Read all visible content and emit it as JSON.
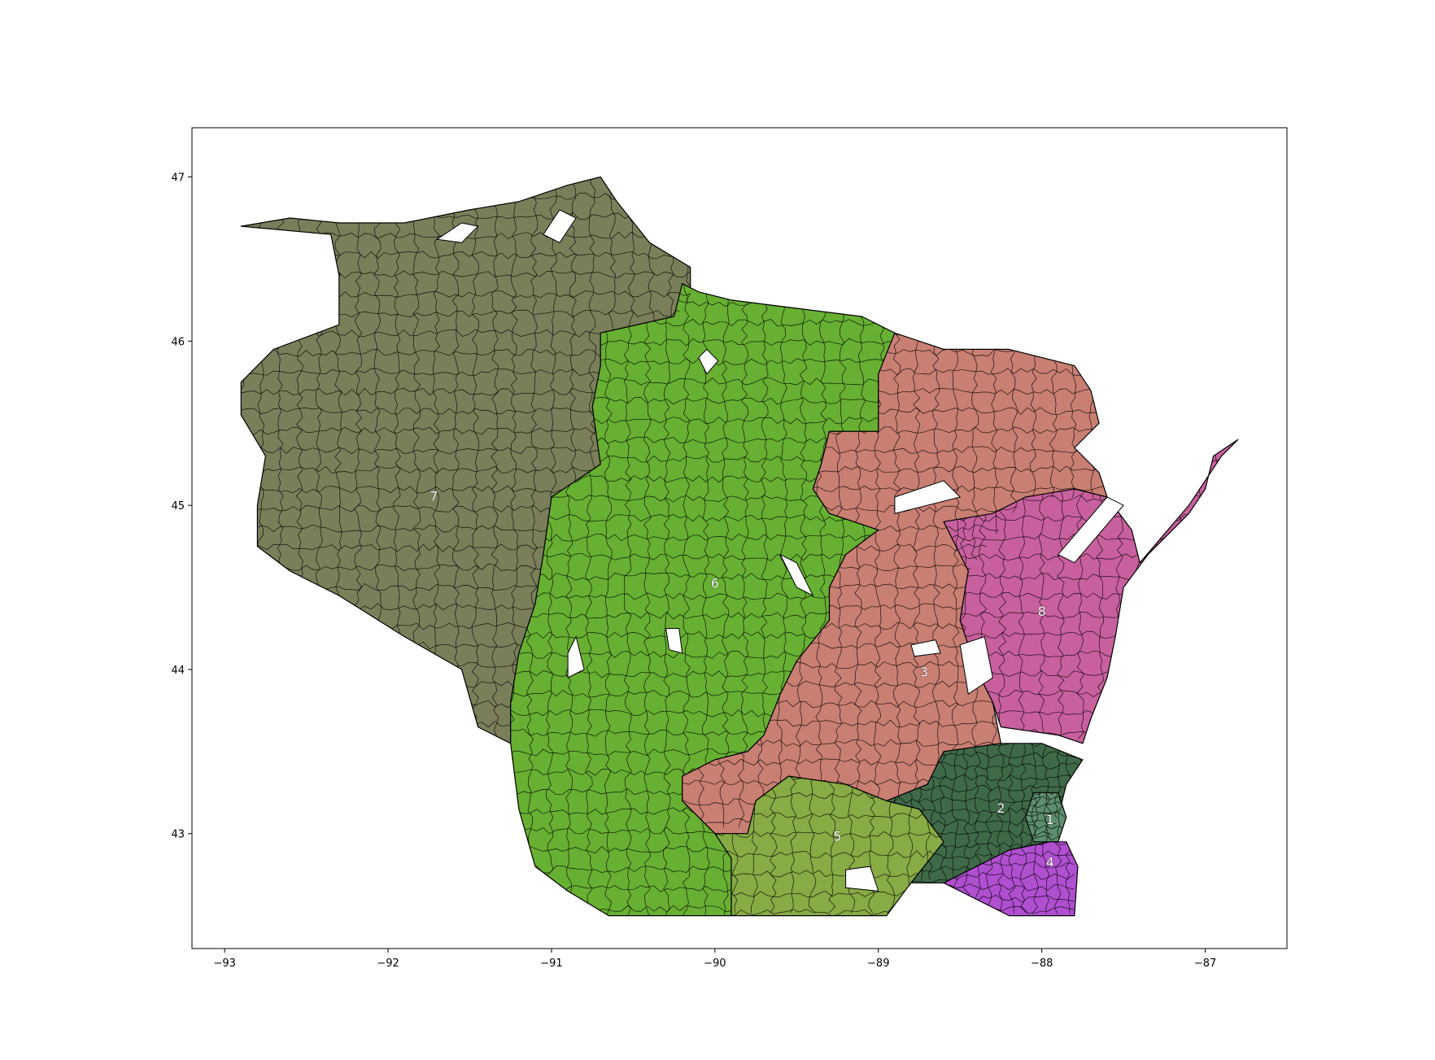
{
  "map": {
    "xlim": [
      -93.2,
      -86.5
    ],
    "ylim": [
      42.3,
      47.3
    ],
    "x_ticks": [
      {
        "value": -93,
        "label": "−93"
      },
      {
        "value": -92,
        "label": "−92"
      },
      {
        "value": -91,
        "label": "−91"
      },
      {
        "value": -90,
        "label": "−90"
      },
      {
        "value": -89,
        "label": "−89"
      },
      {
        "value": -88,
        "label": "−88"
      },
      {
        "value": -87,
        "label": "−87"
      }
    ],
    "y_ticks": [
      {
        "value": 43,
        "label": "43"
      },
      {
        "value": 44,
        "label": "44"
      },
      {
        "value": 45,
        "label": "45"
      },
      {
        "value": 46,
        "label": "46"
      },
      {
        "value": 47,
        "label": "47"
      }
    ],
    "districts": [
      {
        "id": "7",
        "label": "7",
        "color": "#7a7f5a",
        "label_at": [
          -91.72,
          45.05
        ],
        "outline": [
          [
            -92.9,
            46.7
          ],
          [
            -92.6,
            46.75
          ],
          [
            -92.3,
            46.72
          ],
          [
            -91.9,
            46.72
          ],
          [
            -91.5,
            46.8
          ],
          [
            -91.2,
            46.85
          ],
          [
            -90.9,
            46.95
          ],
          [
            -90.7,
            47.0
          ],
          [
            -90.6,
            46.85
          ],
          [
            -90.4,
            46.6
          ],
          [
            -90.15,
            46.45
          ],
          [
            -90.15,
            46.25
          ],
          [
            -90.25,
            46.15
          ],
          [
            -90.7,
            46.05
          ],
          [
            -90.7,
            45.85
          ],
          [
            -90.75,
            45.6
          ],
          [
            -90.7,
            45.25
          ],
          [
            -91.0,
            45.05
          ],
          [
            -91.05,
            44.7
          ],
          [
            -91.1,
            44.4
          ],
          [
            -91.2,
            44.1
          ],
          [
            -91.25,
            43.8
          ],
          [
            -91.25,
            43.55
          ],
          [
            -91.45,
            43.65
          ],
          [
            -91.55,
            44.0
          ],
          [
            -91.9,
            44.2
          ],
          [
            -92.3,
            44.45
          ],
          [
            -92.6,
            44.6
          ],
          [
            -92.8,
            44.75
          ],
          [
            -92.8,
            45.0
          ],
          [
            -92.75,
            45.3
          ],
          [
            -92.9,
            45.55
          ],
          [
            -92.9,
            45.75
          ],
          [
            -92.7,
            45.95
          ],
          [
            -92.3,
            46.1
          ],
          [
            -92.3,
            46.4
          ],
          [
            -92.35,
            46.65
          ]
        ]
      },
      {
        "id": "6",
        "label": "6",
        "color": "#67b032",
        "label_at": [
          -90.0,
          44.52
        ],
        "outline": [
          [
            -90.2,
            46.35
          ],
          [
            -90.1,
            46.3
          ],
          [
            -89.9,
            46.25
          ],
          [
            -89.5,
            46.2
          ],
          [
            -89.1,
            46.15
          ],
          [
            -88.9,
            46.05
          ],
          [
            -89.0,
            45.8
          ],
          [
            -89.0,
            45.6
          ],
          [
            -89.0,
            45.45
          ],
          [
            -89.3,
            45.45
          ],
          [
            -89.35,
            45.25
          ],
          [
            -89.4,
            45.1
          ],
          [
            -89.3,
            44.95
          ],
          [
            -89.0,
            44.85
          ],
          [
            -89.2,
            44.7
          ],
          [
            -89.3,
            44.5
          ],
          [
            -89.3,
            44.3
          ],
          [
            -89.5,
            44.05
          ],
          [
            -89.6,
            43.85
          ],
          [
            -89.7,
            43.6
          ],
          [
            -89.8,
            43.5
          ],
          [
            -90.0,
            43.45
          ],
          [
            -90.2,
            43.35
          ],
          [
            -90.2,
            43.2
          ],
          [
            -90.0,
            43.0
          ],
          [
            -89.9,
            42.85
          ],
          [
            -89.9,
            42.5
          ],
          [
            -90.65,
            42.5
          ],
          [
            -90.9,
            42.65
          ],
          [
            -91.1,
            42.8
          ],
          [
            -91.2,
            43.15
          ],
          [
            -91.25,
            43.55
          ],
          [
            -91.25,
            43.8
          ],
          [
            -91.2,
            44.1
          ],
          [
            -91.1,
            44.4
          ],
          [
            -91.05,
            44.7
          ],
          [
            -91.0,
            45.05
          ],
          [
            -90.7,
            45.25
          ],
          [
            -90.75,
            45.6
          ],
          [
            -90.7,
            45.85
          ],
          [
            -90.7,
            46.05
          ],
          [
            -90.25,
            46.15
          ]
        ]
      },
      {
        "id": "3",
        "label": "3",
        "color": "#c97f72",
        "label_at": [
          -88.72,
          43.98
        ],
        "outline": [
          [
            -88.9,
            46.05
          ],
          [
            -88.6,
            45.95
          ],
          [
            -88.2,
            45.95
          ],
          [
            -87.8,
            45.85
          ],
          [
            -87.7,
            45.7
          ],
          [
            -87.65,
            45.5
          ],
          [
            -87.8,
            45.35
          ],
          [
            -87.65,
            45.2
          ],
          [
            -87.6,
            45.05
          ],
          [
            -88.1,
            45.05
          ],
          [
            -88.3,
            44.8
          ],
          [
            -88.45,
            44.6
          ],
          [
            -88.5,
            44.3
          ],
          [
            -88.4,
            44.0
          ],
          [
            -88.3,
            43.8
          ],
          [
            -88.25,
            43.55
          ],
          [
            -88.6,
            43.5
          ],
          [
            -88.7,
            43.3
          ],
          [
            -88.95,
            43.2
          ],
          [
            -89.2,
            43.3
          ],
          [
            -89.55,
            43.35
          ],
          [
            -89.75,
            43.2
          ],
          [
            -89.8,
            43.0
          ],
          [
            -90.0,
            43.0
          ],
          [
            -90.2,
            43.2
          ],
          [
            -90.2,
            43.35
          ],
          [
            -90.0,
            43.45
          ],
          [
            -89.8,
            43.5
          ],
          [
            -89.7,
            43.6
          ],
          [
            -89.6,
            43.85
          ],
          [
            -89.5,
            44.05
          ],
          [
            -89.3,
            44.3
          ],
          [
            -89.3,
            44.5
          ],
          [
            -89.2,
            44.7
          ],
          [
            -89.0,
            44.85
          ],
          [
            -89.3,
            44.95
          ],
          [
            -89.4,
            45.1
          ],
          [
            -89.35,
            45.25
          ],
          [
            -89.3,
            45.45
          ],
          [
            -89.0,
            45.45
          ],
          [
            -89.0,
            45.6
          ],
          [
            -89.0,
            45.8
          ]
        ]
      },
      {
        "id": "8",
        "label": "8",
        "color": "#c8609e",
        "label_at": [
          -88.0,
          44.35
        ],
        "outline": [
          [
            -88.6,
            44.9
          ],
          [
            -88.3,
            44.95
          ],
          [
            -88.1,
            45.05
          ],
          [
            -87.8,
            45.1
          ],
          [
            -87.6,
            45.05
          ],
          [
            -87.45,
            44.85
          ],
          [
            -87.4,
            44.65
          ],
          [
            -87.1,
            45.0
          ],
          [
            -86.9,
            45.3
          ],
          [
            -86.8,
            45.4
          ],
          [
            -86.95,
            45.3
          ],
          [
            -87.0,
            45.1
          ],
          [
            -87.1,
            44.95
          ],
          [
            -87.35,
            44.7
          ],
          [
            -87.5,
            44.5
          ],
          [
            -87.55,
            44.2
          ],
          [
            -87.6,
            43.95
          ],
          [
            -87.7,
            43.7
          ],
          [
            -87.75,
            43.55
          ],
          [
            -87.9,
            43.6
          ],
          [
            -88.25,
            43.65
          ],
          [
            -88.3,
            43.8
          ],
          [
            -88.4,
            44.0
          ],
          [
            -88.5,
            44.3
          ],
          [
            -88.45,
            44.6
          ]
        ]
      },
      {
        "id": "5",
        "label": "5",
        "color": "#87ab45",
        "label_at": [
          -89.25,
          42.98
        ],
        "outline": [
          [
            -89.9,
            42.5
          ],
          [
            -88.95,
            42.5
          ],
          [
            -88.8,
            42.7
          ],
          [
            -88.6,
            42.95
          ],
          [
            -88.75,
            43.15
          ],
          [
            -88.95,
            43.2
          ],
          [
            -89.2,
            43.3
          ],
          [
            -89.55,
            43.35
          ],
          [
            -89.75,
            43.2
          ],
          [
            -89.8,
            43.0
          ],
          [
            -90.0,
            43.0
          ],
          [
            -89.9,
            42.85
          ]
        ]
      },
      {
        "id": "2",
        "label": "2",
        "color": "#3f6a48",
        "label_at": [
          -88.25,
          43.15
        ],
        "outline": [
          [
            -88.25,
            43.55
          ],
          [
            -88.0,
            43.55
          ],
          [
            -87.75,
            43.45
          ],
          [
            -87.85,
            43.3
          ],
          [
            -87.9,
            43.1
          ],
          [
            -87.95,
            42.95
          ],
          [
            -88.2,
            42.9
          ],
          [
            -88.4,
            42.8
          ],
          [
            -88.6,
            42.7
          ],
          [
            -88.8,
            42.7
          ],
          [
            -88.6,
            42.95
          ],
          [
            -88.75,
            43.15
          ],
          [
            -88.95,
            43.2
          ],
          [
            -88.7,
            43.3
          ],
          [
            -88.6,
            43.5
          ]
        ]
      },
      {
        "id": "1",
        "label": "1",
        "color": "#5d8f6e",
        "label_at": [
          -87.95,
          43.08
        ],
        "outline": [
          [
            -88.05,
            43.25
          ],
          [
            -87.9,
            43.25
          ],
          [
            -87.85,
            43.1
          ],
          [
            -87.9,
            42.95
          ],
          [
            -88.05,
            42.95
          ],
          [
            -88.1,
            43.1
          ]
        ]
      },
      {
        "id": "4",
        "label": "4",
        "color": "#b04fd0",
        "label_at": [
          -87.95,
          42.82
        ],
        "outline": [
          [
            -88.2,
            42.9
          ],
          [
            -87.95,
            42.95
          ],
          [
            -87.85,
            42.95
          ],
          [
            -87.78,
            42.8
          ],
          [
            -87.8,
            42.5
          ],
          [
            -88.2,
            42.5
          ],
          [
            -88.4,
            42.6
          ],
          [
            -88.6,
            42.7
          ],
          [
            -88.4,
            42.8
          ]
        ]
      }
    ]
  }
}
